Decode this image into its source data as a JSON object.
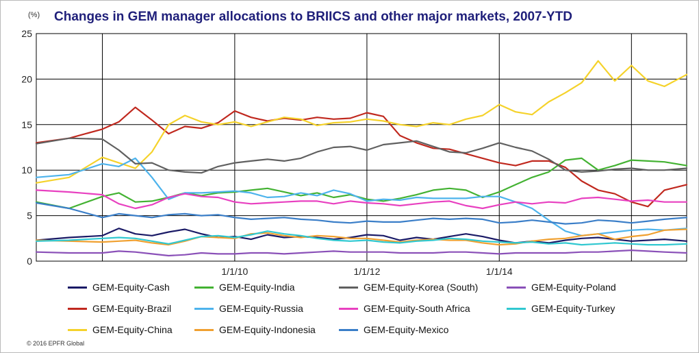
{
  "header": {
    "unit": "(%)",
    "title": "Changes in GEM manager allocations to BRIICS and other major markets, 2007-YTD"
  },
  "footer": {
    "copyright": "© 2016 EPFR Global"
  },
  "chart_data": {
    "type": "line",
    "title": "Changes in GEM manager allocations to BRIICS and other major markets, 2007-YTD",
    "xlabel": "",
    "ylabel": "(%)",
    "xlim": [
      "2007-01-01",
      "2016-11-01"
    ],
    "ylim": [
      0,
      25
    ],
    "yticks": [
      0,
      5,
      10,
      15,
      20,
      25
    ],
    "xticks": [
      {
        "date": "2008-01-01",
        "label": ""
      },
      {
        "date": "2010-01-01",
        "label": "1/1/10"
      },
      {
        "date": "2012-01-01",
        "label": "1/1/12"
      },
      {
        "date": "2014-01-01",
        "label": "1/1/14"
      },
      {
        "date": "2016-01-01",
        "label": ""
      }
    ],
    "grid": true,
    "legend_position": "bottom",
    "x": [
      "2007-01-01",
      "2007-07-01",
      "2008-01-01",
      "2008-04-01",
      "2008-07-01",
      "2008-10-01",
      "2009-01-01",
      "2009-04-01",
      "2009-07-01",
      "2009-10-01",
      "2010-01-01",
      "2010-04-01",
      "2010-07-01",
      "2010-10-01",
      "2011-01-01",
      "2011-04-01",
      "2011-07-01",
      "2011-10-01",
      "2012-01-01",
      "2012-04-01",
      "2012-07-01",
      "2012-10-01",
      "2013-01-01",
      "2013-04-01",
      "2013-07-01",
      "2013-10-01",
      "2014-01-01",
      "2014-04-01",
      "2014-07-01",
      "2014-10-01",
      "2015-01-01",
      "2015-04-01",
      "2015-07-01",
      "2015-10-01",
      "2016-01-01",
      "2016-04-01",
      "2016-07-01",
      "2016-11-01"
    ],
    "series": [
      {
        "name": "GEM-Equity-Cash",
        "color": "#1a1a66",
        "values": [
          2.3,
          2.6,
          2.8,
          3.6,
          3.0,
          2.8,
          3.2,
          3.5,
          3.0,
          2.6,
          2.7,
          2.4,
          2.9,
          2.6,
          2.7,
          2.6,
          2.4,
          2.6,
          2.9,
          2.8,
          2.3,
          2.6,
          2.4,
          2.7,
          3.0,
          2.7,
          2.3,
          2.0,
          2.2,
          2.0,
          2.3,
          2.5,
          2.6,
          2.4,
          2.2,
          2.3,
          2.4,
          2.2
        ]
      },
      {
        "name": "GEM-Equity-Brazil",
        "color": "#c0281e",
        "values": [
          13.0,
          13.5,
          14.5,
          15.3,
          16.9,
          15.5,
          14.0,
          14.8,
          14.6,
          15.2,
          16.5,
          15.8,
          15.4,
          15.7,
          15.5,
          15.8,
          15.6,
          15.7,
          16.3,
          15.9,
          13.8,
          13.0,
          12.4,
          12.3,
          11.8,
          11.3,
          10.8,
          10.5,
          11.0,
          11.0,
          10.3,
          8.8,
          7.8,
          7.4,
          6.5,
          6.0,
          7.8,
          8.4
        ]
      },
      {
        "name": "GEM-Equity-China",
        "color": "#f5d22a",
        "values": [
          8.6,
          9.2,
          11.4,
          10.8,
          10.2,
          12.0,
          15.0,
          16.0,
          15.3,
          15.0,
          15.3,
          14.8,
          15.3,
          15.8,
          15.6,
          14.9,
          15.2,
          15.3,
          15.6,
          15.4,
          15.0,
          14.8,
          15.2,
          15.0,
          15.6,
          16.0,
          17.2,
          16.4,
          16.1,
          17.5,
          18.5,
          19.6,
          22.0,
          19.8,
          21.5,
          19.8,
          19.2,
          20.5
        ]
      },
      {
        "name": "GEM-Equity-India",
        "color": "#43b232",
        "values": [
          6.5,
          5.8,
          7.1,
          7.5,
          6.5,
          6.6,
          7.0,
          7.5,
          7.2,
          7.5,
          7.6,
          7.8,
          8.0,
          7.6,
          7.2,
          7.5,
          7.0,
          7.3,
          6.8,
          6.6,
          6.9,
          7.3,
          7.8,
          8.0,
          7.8,
          7.0,
          7.6,
          8.4,
          9.2,
          9.8,
          11.1,
          11.3,
          10.0,
          10.5,
          11.1,
          11.0,
          10.9,
          10.5
        ]
      },
      {
        "name": "GEM-Equity-Russia",
        "color": "#4db3ec",
        "values": [
          9.2,
          9.5,
          10.7,
          10.4,
          11.3,
          9.2,
          6.8,
          7.5,
          7.5,
          7.6,
          7.7,
          7.5,
          7.0,
          7.1,
          7.5,
          7.2,
          7.8,
          7.4,
          6.6,
          6.8,
          6.7,
          7.0,
          6.9,
          6.9,
          6.9,
          7.1,
          7.1,
          6.5,
          5.8,
          4.5,
          3.3,
          2.8,
          3.0,
          3.2,
          3.4,
          3.5,
          3.4,
          3.6
        ]
      },
      {
        "name": "GEM-Equity-Indonesia",
        "color": "#f0a030",
        "values": [
          2.3,
          2.2,
          2.1,
          2.2,
          2.3,
          2.0,
          1.8,
          2.2,
          2.7,
          2.6,
          2.5,
          3.0,
          3.1,
          2.8,
          2.6,
          2.8,
          2.7,
          2.5,
          2.5,
          2.3,
          2.1,
          2.3,
          2.4,
          2.3,
          2.3,
          2.0,
          1.8,
          1.9,
          2.2,
          2.4,
          2.5,
          2.8,
          3.0,
          2.4,
          2.7,
          2.9,
          3.4,
          3.5
        ]
      },
      {
        "name": "GEM-Equity-Korea (South)",
        "color": "#606060",
        "values": [
          12.9,
          13.5,
          13.4,
          12.2,
          10.7,
          10.8,
          10.0,
          9.8,
          9.7,
          10.4,
          10.8,
          11.0,
          11.2,
          11.0,
          11.3,
          12.0,
          12.5,
          12.6,
          12.2,
          12.8,
          13.0,
          13.2,
          12.6,
          12.0,
          11.9,
          12.4,
          13.0,
          12.5,
          12.1,
          11.2,
          10.0,
          9.8,
          9.9,
          10.1,
          10.2,
          10.0,
          10.0,
          10.2
        ]
      },
      {
        "name": "GEM-Equity-South Africa",
        "color": "#e840c0",
        "values": [
          7.8,
          7.6,
          7.3,
          6.3,
          5.8,
          6.2,
          7.0,
          7.4,
          7.1,
          7.0,
          6.5,
          6.3,
          6.4,
          6.5,
          6.6,
          6.6,
          6.3,
          6.6,
          6.4,
          6.3,
          6.1,
          6.3,
          6.5,
          6.6,
          6.1,
          5.8,
          6.2,
          6.5,
          6.3,
          6.5,
          6.4,
          6.9,
          7.0,
          6.8,
          6.6,
          6.7,
          6.5,
          6.5
        ]
      },
      {
        "name": "GEM-Equity-Mexico",
        "color": "#3a7ec8",
        "values": [
          6.4,
          5.8,
          4.8,
          5.2,
          5.0,
          4.8,
          5.1,
          5.2,
          5.0,
          5.1,
          4.8,
          4.6,
          4.7,
          4.8,
          4.6,
          4.5,
          4.3,
          4.2,
          4.4,
          4.3,
          4.3,
          4.5,
          4.7,
          4.6,
          4.7,
          4.6,
          4.2,
          4.3,
          4.5,
          4.3,
          4.1,
          4.2,
          4.5,
          4.4,
          4.2,
          4.4,
          4.6,
          4.8
        ]
      },
      {
        "name": "GEM-Equity-Poland",
        "color": "#8a50b8",
        "values": [
          1.0,
          0.9,
          0.9,
          1.1,
          1.0,
          0.8,
          0.6,
          0.7,
          0.9,
          0.8,
          0.8,
          0.9,
          0.9,
          0.8,
          0.9,
          1.0,
          1.1,
          1.0,
          1.0,
          1.0,
          0.9,
          0.9,
          0.9,
          1.0,
          1.0,
          0.9,
          0.8,
          0.9,
          0.9,
          0.9,
          0.9,
          1.0,
          1.0,
          1.1,
          1.2,
          1.1,
          1.0,
          0.9
        ]
      },
      {
        "name": "GEM-Equity-Turkey",
        "color": "#30c8d0",
        "values": [
          2.2,
          2.3,
          2.5,
          2.6,
          2.5,
          2.2,
          1.9,
          2.3,
          2.7,
          2.8,
          2.6,
          2.9,
          3.3,
          3.0,
          2.8,
          2.5,
          2.3,
          2.2,
          2.3,
          2.1,
          2.0,
          2.2,
          2.3,
          2.5,
          2.4,
          2.2,
          2.1,
          2.0,
          2.1,
          1.9,
          2.0,
          1.8,
          1.9,
          2.0,
          1.9,
          1.8,
          1.8,
          1.9
        ]
      }
    ]
  }
}
